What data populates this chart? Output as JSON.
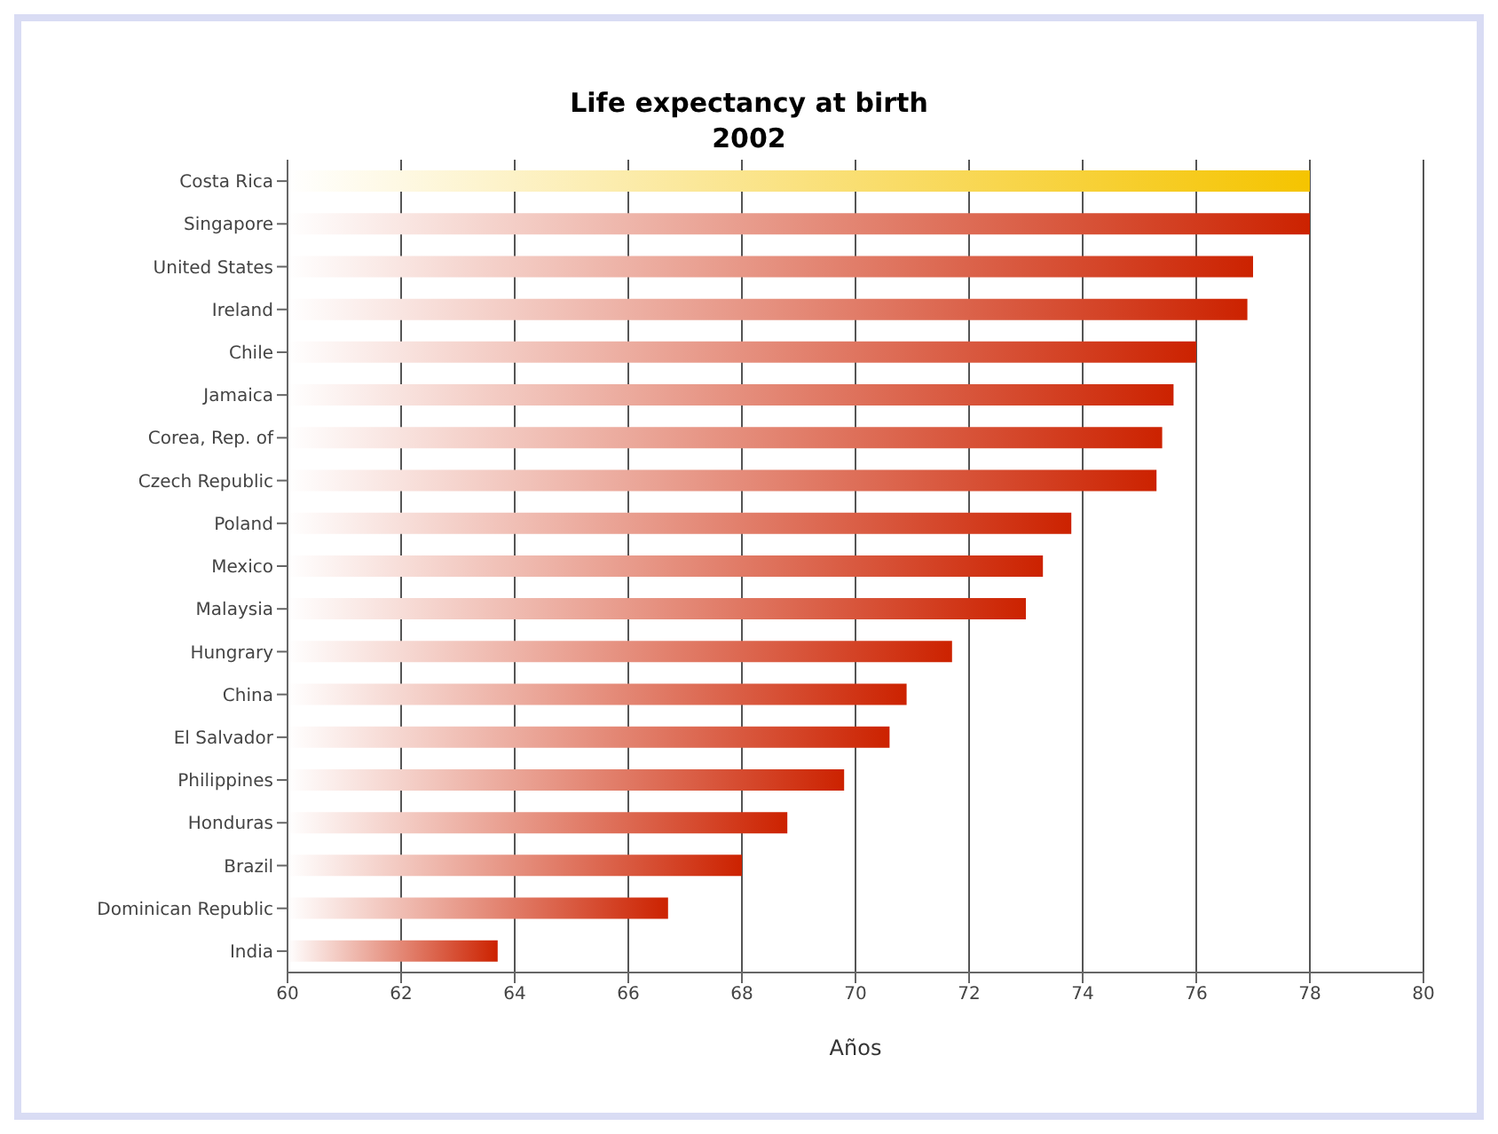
{
  "chart_data": {
    "type": "bar",
    "orientation": "horizontal",
    "title": "Life expectancy at birth\n2002",
    "xlabel": "Años",
    "categories": [
      "Costa Rica",
      "Singapore",
      "United States",
      "Ireland",
      "Chile",
      "Jamaica",
      "Corea, Rep. of",
      "Czech Republic",
      "Poland",
      "Mexico",
      "Malaysia",
      "Hungrary",
      "China",
      "El Salvador",
      "Philippines",
      "Honduras",
      "Brazil",
      "Dominican Republic",
      "India"
    ],
    "values": [
      78.0,
      78.0,
      77.0,
      76.9,
      76.0,
      75.6,
      75.4,
      75.3,
      73.8,
      73.3,
      73.0,
      71.7,
      70.9,
      70.6,
      69.8,
      68.8,
      68.0,
      66.7,
      63.7
    ],
    "colors": [
      "#f5c400",
      "#cc2200",
      "#cc2200",
      "#cc2200",
      "#cc2200",
      "#cc2200",
      "#cc2200",
      "#cc2200",
      "#cc2200",
      "#cc2200",
      "#cc2200",
      "#cc2200",
      "#cc2200",
      "#cc2200",
      "#cc2200",
      "#cc2200",
      "#cc2200",
      "#cc2200",
      "#cc2200"
    ],
    "xlim": [
      60,
      80
    ],
    "xticks": [
      60,
      62,
      64,
      66,
      68,
      70,
      72,
      74,
      76,
      78,
      80
    ],
    "grid": "x"
  }
}
